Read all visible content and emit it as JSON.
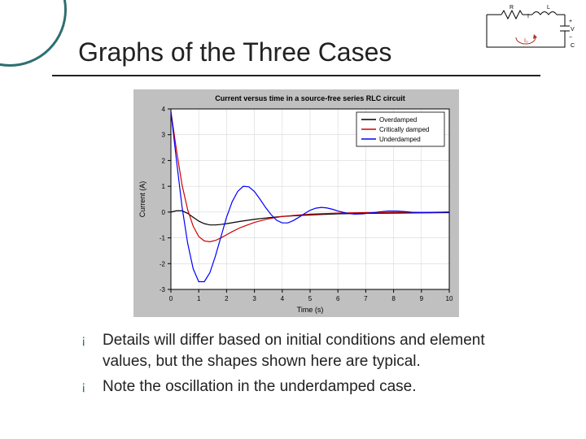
{
  "slide": {
    "title": "Graphs of the Three Cases",
    "bullets": [
      "Details will differ based on initial conditions and element values, but the shapes shown here are typical.",
      "Note the oscillation in the underdamped case."
    ]
  },
  "chart": {
    "type": "line",
    "title": "Current versus time in a source-free series RLC circuit",
    "title_fontsize": 9,
    "title_color": "#000000",
    "background_color": "#ffffff",
    "plot_background_color": "#ffffff",
    "figure_background_color": "#c0c0c0",
    "grid_color": "#d8d8d8",
    "axis_color": "#000000",
    "xlabel": "Time (s)",
    "ylabel": "Current (A)",
    "label_fontsize": 9,
    "tick_fontsize": 8,
    "xlim": [
      0,
      10
    ],
    "ylim": [
      -3,
      4
    ],
    "xtick_step": 1,
    "ytick_step": 1,
    "grid": true,
    "line_width": 1.2,
    "legend": {
      "position": "top-right",
      "border_color": "#000000",
      "background_color": "#ffffff",
      "fontsize": 8,
      "entries": [
        {
          "label": "Overdamped",
          "color": "#000000"
        },
        {
          "label": "Critically damped",
          "color": "#d00000"
        },
        {
          "label": "Underdamped",
          "color": "#0000ff"
        }
      ]
    },
    "series": [
      {
        "name": "Overdamped",
        "color": "#000000",
        "x": [
          0,
          0.2,
          0.4,
          0.6,
          0.8,
          1,
          1.2,
          1.4,
          1.6,
          1.8,
          2,
          2.5,
          3,
          3.5,
          4,
          4.5,
          5,
          6,
          7,
          8,
          9,
          10
        ],
        "y": [
          0,
          0.05,
          0.05,
          -0.05,
          -0.2,
          -0.35,
          -0.45,
          -0.5,
          -0.5,
          -0.48,
          -0.45,
          -0.36,
          -0.28,
          -0.22,
          -0.17,
          -0.14,
          -0.11,
          -0.07,
          -0.05,
          -0.04,
          -0.03,
          -0.02
        ]
      },
      {
        "name": "Critically damped",
        "color": "#d00000",
        "x": [
          0,
          0.2,
          0.4,
          0.6,
          0.8,
          1,
          1.2,
          1.4,
          1.6,
          1.8,
          2,
          2.2,
          2.5,
          3,
          3.5,
          4,
          4.5,
          5,
          6,
          7,
          8,
          9,
          10
        ],
        "y": [
          3.9,
          2.4,
          1.05,
          0.1,
          -0.55,
          -0.95,
          -1.12,
          -1.15,
          -1.1,
          -1.0,
          -0.88,
          -0.76,
          -0.6,
          -0.4,
          -0.26,
          -0.17,
          -0.12,
          -0.08,
          -0.04,
          -0.02,
          -0.01,
          -0.01,
          0
        ]
      },
      {
        "name": "Underdamped",
        "color": "#0000ff",
        "x": [
          0,
          0.2,
          0.4,
          0.6,
          0.8,
          1,
          1.2,
          1.4,
          1.6,
          1.8,
          2,
          2.2,
          2.4,
          2.6,
          2.8,
          3,
          3.2,
          3.4,
          3.6,
          3.8,
          4,
          4.2,
          4.4,
          4.6,
          4.8,
          5,
          5.2,
          5.4,
          5.6,
          5.8,
          6,
          6.3,
          6.6,
          6.9,
          7.2,
          7.5,
          7.8,
          8.1,
          8.4,
          8.7,
          9,
          9.3,
          9.6,
          10
        ],
        "y": [
          3.9,
          2.0,
          0.2,
          -1.2,
          -2.2,
          -2.7,
          -2.7,
          -2.35,
          -1.7,
          -0.95,
          -0.2,
          0.4,
          0.8,
          1.0,
          0.98,
          0.8,
          0.5,
          0.18,
          -0.1,
          -0.32,
          -0.42,
          -0.42,
          -0.33,
          -0.2,
          -0.06,
          0.07,
          0.15,
          0.18,
          0.16,
          0.11,
          0.04,
          -0.04,
          -0.08,
          -0.07,
          -0.03,
          0.01,
          0.04,
          0.04,
          0.02,
          -0.01,
          -0.02,
          -0.02,
          -0.01,
          0
        ]
      }
    ]
  },
  "circuit_thumb": {
    "label_R": "R",
    "label_L": "L",
    "label_I": "I",
    "label_Vplus": "+",
    "label_Vminus": "−",
    "label_V": "V",
    "label_I0": "I₀",
    "label_C": "C",
    "colors": {
      "wire": "#000000",
      "loop": "#b03020"
    }
  },
  "decor": {
    "arc_color": "#2f6f6f",
    "bullet_marker_color": "#2f6f6f",
    "hr_color": "#222222"
  }
}
